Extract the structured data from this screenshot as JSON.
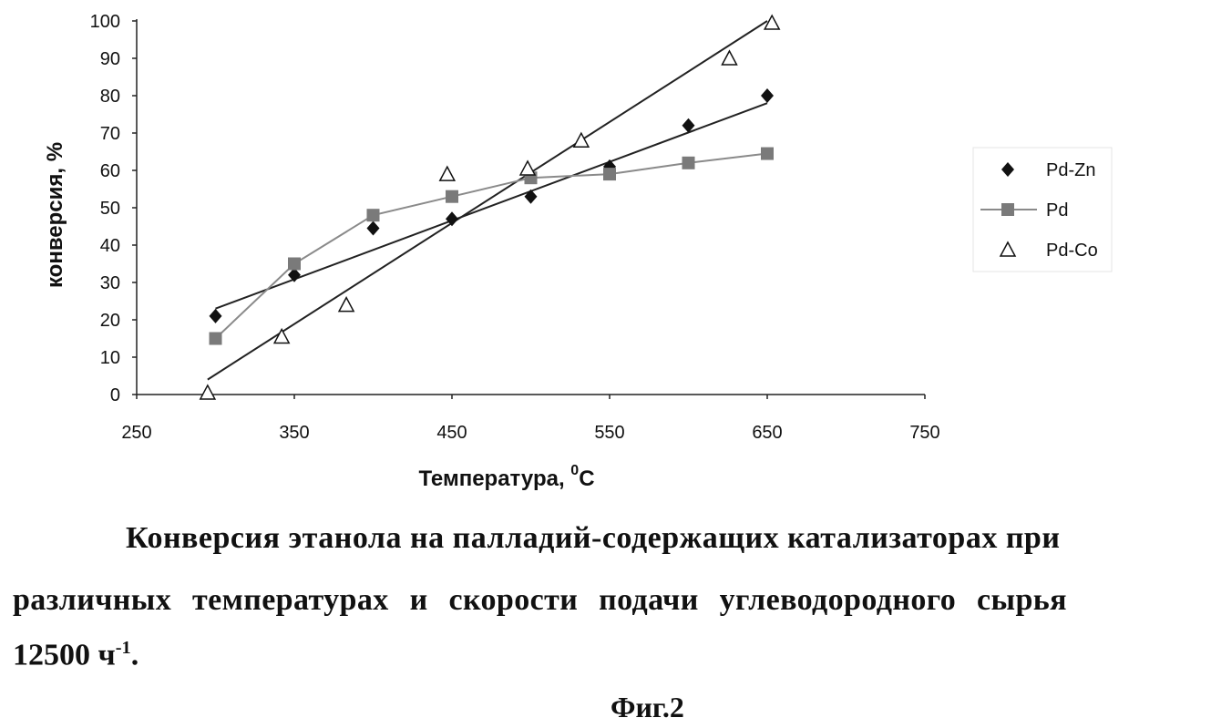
{
  "chart_data": {
    "type": "scatter",
    "title": "",
    "xlabel": "Температура, ",
    "xlabel_sup": "0",
    "xlabel_unit": "C",
    "ylabel": "конверсия, %",
    "xlim": [
      250,
      750
    ],
    "ylim": [
      0,
      100
    ],
    "x_ticks": [
      "250",
      "350",
      "450",
      "550",
      "650",
      "750"
    ],
    "y_ticks": [
      "0",
      "10",
      "20",
      "30",
      "40",
      "50",
      "60",
      "70",
      "80",
      "90",
      "100"
    ],
    "legend_position": "right",
    "series": [
      {
        "name": "Pd-Zn",
        "marker": "diamond",
        "color": "#111111",
        "x": [
          300,
          350,
          400,
          450,
          500,
          550,
          600,
          650
        ],
        "y": [
          21,
          32,
          44.5,
          47,
          53,
          61,
          72,
          80
        ],
        "trendline": {
          "x": [
            300,
            650
          ],
          "y": [
            23,
            78
          ]
        }
      },
      {
        "name": "Pd",
        "marker": "square",
        "color": "#7a7a7a",
        "line": "connected",
        "x": [
          300,
          350,
          400,
          450,
          500,
          550,
          600,
          650
        ],
        "y": [
          15,
          35,
          48,
          53,
          58,
          59,
          62,
          64.5
        ]
      },
      {
        "name": "Pd-Co",
        "marker": "triangle-open",
        "color": "#111111",
        "x": [
          295,
          342,
          383,
          447,
          498,
          532,
          626,
          653
        ],
        "y": [
          0.5,
          15.5,
          24,
          59,
          60.5,
          68,
          90,
          99.5
        ],
        "trendline": {
          "x": [
            295,
            650
          ],
          "y": [
            4,
            100
          ]
        }
      }
    ]
  },
  "caption": {
    "line1": "Конверсия этанола на палладий-содержащих катализаторах при",
    "line2": "различных температурах и скорости подачи углеводородного сырья",
    "line3_main": "12500 ч",
    "line3_sup": "-1",
    "line3_end": "."
  },
  "figure_label": "Фиг.2"
}
